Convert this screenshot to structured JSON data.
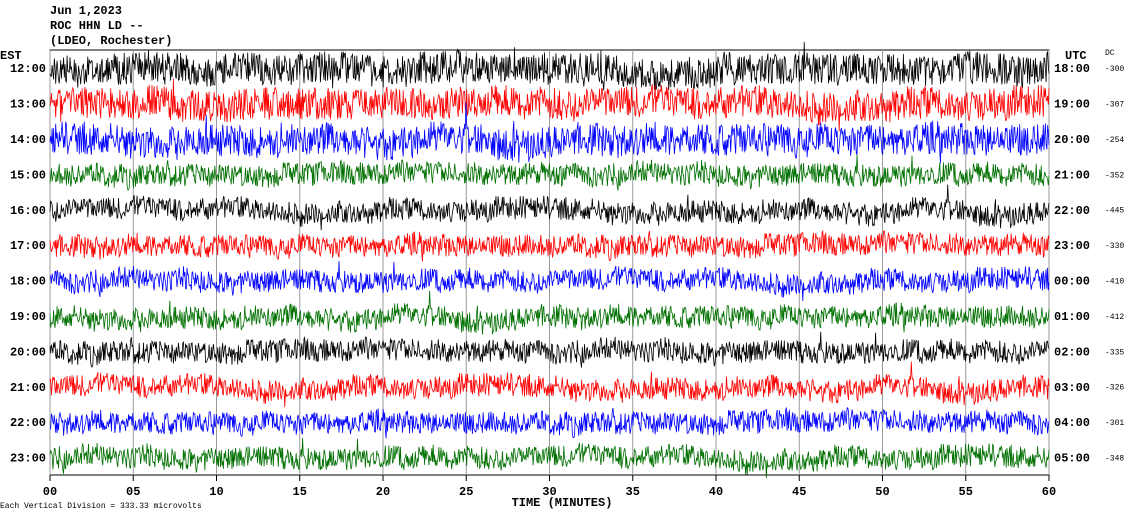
{
  "chart_data": {
    "type": "helicorder",
    "title_lines": [
      "Jun 1,2023",
      "ROC HHN LD --",
      "(LDEO, Rochester)"
    ],
    "left_axis_label": "EST",
    "right_axis_label": "UTC",
    "dc_label": "DC",
    "est_labels": [
      "12:00",
      "13:00",
      "14:00",
      "15:00",
      "16:00",
      "17:00",
      "18:00",
      "19:00",
      "20:00",
      "21:00",
      "22:00",
      "23:00"
    ],
    "utc_labels": [
      "18:00",
      "19:00",
      "20:00",
      "21:00",
      "22:00",
      "23:00",
      "00:00",
      "01:00",
      "02:00",
      "03:00",
      "04:00",
      "05:00"
    ],
    "dc_offsets": [
      -300,
      -307,
      -254,
      -352,
      -445,
      -330,
      -410,
      -412,
      -335,
      -326,
      -301,
      -348
    ],
    "colors": [
      "#000000",
      "#ff0000",
      "#0000ff",
      "#007000"
    ],
    "xlim": [
      0,
      60
    ],
    "xticks": [
      {
        "value": 0,
        "label": "00"
      },
      {
        "value": 5,
        "label": "05"
      },
      10,
      15,
      20,
      25,
      30,
      35,
      40,
      45,
      50,
      55,
      60
    ],
    "xlabel": "TIME (MINUTES)",
    "footnote": "Each Vertical Division =  333.33 microvolts",
    "grid": true
  }
}
